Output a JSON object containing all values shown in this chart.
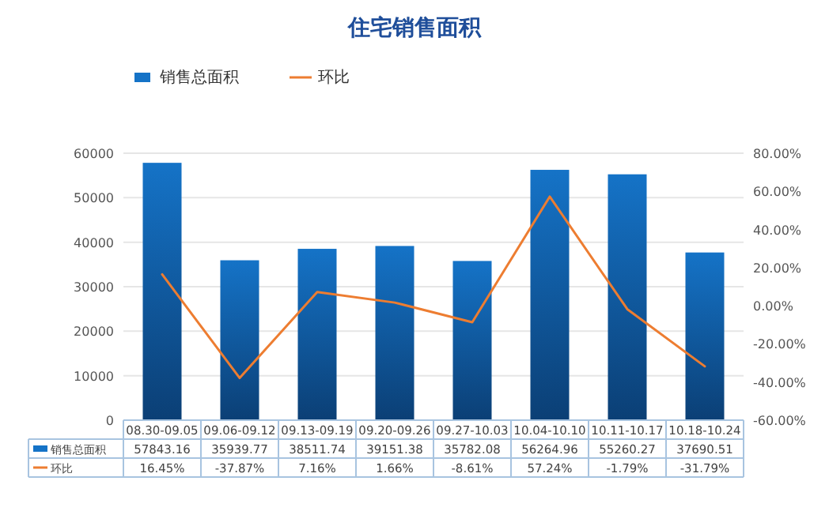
{
  "chart_data": {
    "type": "bar",
    "title": "住宅销售面积",
    "categories": [
      "08.30-09.05",
      "09.06-09.12",
      "09.13-09.19",
      "09.20-09.26",
      "09.27-10.03",
      "10.04-10.10",
      "10.11-10.17",
      "10.18-10.24"
    ],
    "series": [
      {
        "name": "销售总面积",
        "color": "#1573c7",
        "values": [
          57843.16,
          35939.77,
          38511.74,
          39151.38,
          35782.08,
          56264.96,
          55260.27,
          37690.51
        ],
        "value_labels": [
          "57843.16",
          "35939.77",
          "38511.74",
          "39151.38",
          "35782.08",
          "56264.96",
          "55260.27",
          "37690.51"
        ]
      },
      {
        "name": "环比",
        "type": "line",
        "axis": "y2",
        "color": "#ed7d31",
        "values": [
          16.45,
          -37.87,
          7.16,
          1.66,
          -8.61,
          57.24,
          -1.79,
          -31.79
        ],
        "value_labels": [
          "16.45%",
          "-37.87%",
          "7.16%",
          "1.66%",
          "-8.61%",
          "57.24%",
          "-1.79%",
          "-31.79%"
        ]
      }
    ],
    "ylim": [
      0,
      60000
    ],
    "yticks": [
      0,
      10000,
      20000,
      30000,
      40000,
      50000,
      60000
    ],
    "y2lim": [
      -60,
      80
    ],
    "y2ticks": [
      {
        "value": -60,
        "label": "-60.00%"
      },
      {
        "value": -40,
        "label": "-40.00%"
      },
      {
        "value": -20,
        "label": "-20.00%"
      },
      {
        "value": 0,
        "label": "0.00%"
      },
      {
        "value": 20,
        "label": "20.00%"
      },
      {
        "value": 40,
        "label": "40.00%"
      },
      {
        "value": 60,
        "label": "60.00%"
      },
      {
        "value": 80,
        "label": "80.00%"
      }
    ],
    "grid": "y",
    "legend": "top",
    "marker": "none",
    "line_style": "solid"
  }
}
